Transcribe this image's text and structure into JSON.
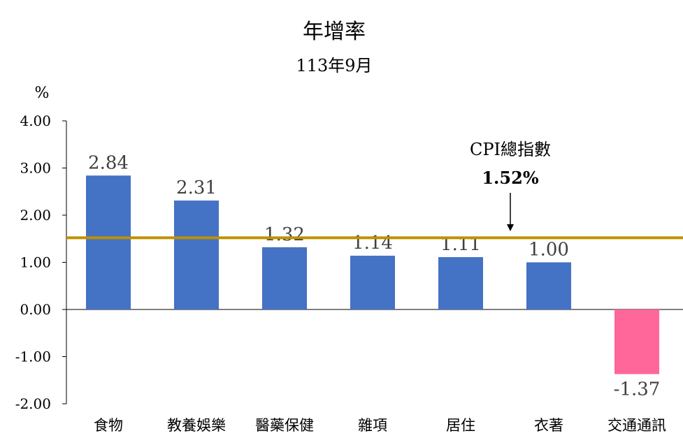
{
  "chart_data": {
    "type": "bar",
    "title": "年增率",
    "subtitle": "113年9月",
    "ylabel": "%",
    "ylim": [
      -2,
      4
    ],
    "yticks": [
      "4.00",
      "3.00",
      "2.00",
      "1.00",
      "0.00",
      "-1.00",
      "-2.00"
    ],
    "categories": [
      "食物",
      "教養娛樂",
      "醫藥保健",
      "雜項",
      "居住",
      "衣著",
      "交通通訊"
    ],
    "values": [
      2.84,
      2.31,
      1.32,
      1.14,
      1.11,
      1.0,
      -1.37
    ],
    "value_labels": [
      "2.84",
      "2.31",
      "1.32",
      "1.14",
      "1.11",
      "1.00",
      "-1.37"
    ],
    "colors": {
      "positive": "#4472C4",
      "negative": "#FF6699",
      "reference": "#BF9000"
    },
    "reference_line": {
      "value": 1.52,
      "label": "CPI總指數",
      "value_label": "1.52%"
    },
    "grid": false,
    "legend": "none"
  }
}
